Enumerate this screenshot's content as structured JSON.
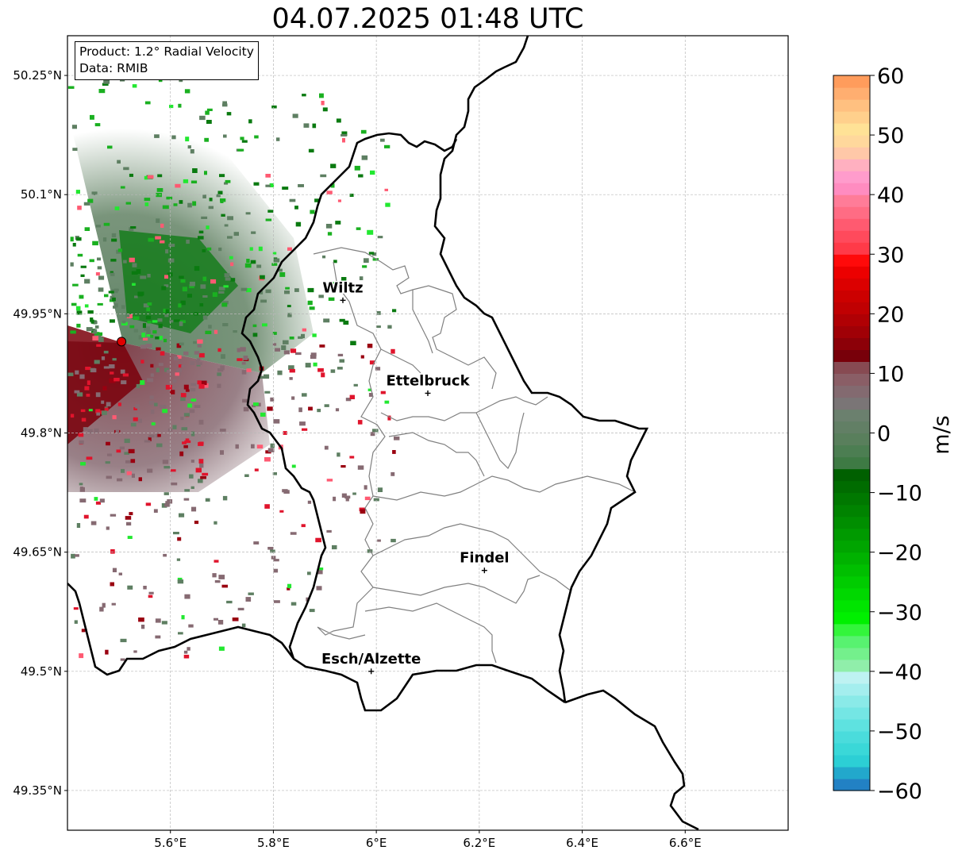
{
  "title": "04.07.2025 01:48 UTC",
  "info_box": {
    "product": "Product: 1.2° Radial Velocity",
    "data": "Data: RMIB"
  },
  "axes": {
    "lat_ticks": [
      {
        "value": 50.25,
        "label": "50.25°N"
      },
      {
        "value": 50.1,
        "label": "50.1°N"
      },
      {
        "value": 49.95,
        "label": "49.95°N"
      },
      {
        "value": 49.8,
        "label": "49.8°N"
      },
      {
        "value": 49.65,
        "label": "49.65°N"
      },
      {
        "value": 49.5,
        "label": "49.5°N"
      },
      {
        "value": 49.35,
        "label": "49.35°N"
      }
    ],
    "lon_ticks": [
      {
        "value": 5.6,
        "label": "5.6°E"
      },
      {
        "value": 5.8,
        "label": "5.8°E"
      },
      {
        "value": 6.0,
        "label": "6°E"
      },
      {
        "value": 6.2,
        "label": "6.2°E"
      },
      {
        "value": 6.4,
        "label": "6.4°E"
      },
      {
        "value": 6.6,
        "label": "6.6°E"
      }
    ],
    "lon_range": [
      5.4,
      6.8
    ],
    "lat_range": [
      49.3,
      50.3
    ],
    "grid": true
  },
  "cities": [
    {
      "name": "Wiltz",
      "lon": 5.935,
      "lat": 49.967
    },
    {
      "name": "Ettelbruck",
      "lon": 6.1,
      "lat": 49.85
    },
    {
      "name": "Findel",
      "lon": 6.21,
      "lat": 49.627
    },
    {
      "name": "Esch/Alzette",
      "lon": 5.99,
      "lat": 49.5
    }
  ],
  "radar_site": {
    "lon": 5.505,
    "lat": 49.915
  },
  "colorbar": {
    "label": "m/s",
    "min": -60,
    "max": 60,
    "ticks": [
      {
        "value": 60,
        "label": "60"
      },
      {
        "value": 50,
        "label": "50"
      },
      {
        "value": 40,
        "label": "40"
      },
      {
        "value": 30,
        "label": "30"
      },
      {
        "value": 20,
        "label": "20"
      },
      {
        "value": 10,
        "label": "10"
      },
      {
        "value": 0,
        "label": "0"
      },
      {
        "value": -10,
        "label": "−10"
      },
      {
        "value": -20,
        "label": "−20"
      },
      {
        "value": -30,
        "label": "−30"
      },
      {
        "value": -40,
        "label": "−40"
      },
      {
        "value": -50,
        "label": "−50"
      },
      {
        "value": -60,
        "label": "−60"
      }
    ],
    "colors": [
      "#2281c4",
      "#22a8cc",
      "#2ccfd5",
      "#3ad8d8",
      "#4adcdc",
      "#5ee2e0",
      "#74e6e4",
      "#8aeae8",
      "#a4eeee",
      "#bef2f2",
      "#90eeaa",
      "#74f08c",
      "#58f270",
      "#33f53b",
      "#00f000",
      "#00e500",
      "#00d800",
      "#00cc00",
      "#00bf00",
      "#00b200",
      "#00a500",
      "#009a00",
      "#008e00",
      "#008300",
      "#007800",
      "#006c00",
      "#006000",
      "#3e7a44",
      "#4c7e52",
      "#597f5c",
      "#627f65",
      "#6b806e",
      "#7a7576",
      "#836a70",
      "#8a5e66",
      "#874a52",
      "#78000a",
      "#8c0008",
      "#a00006",
      "#b00004",
      "#c00002",
      "#cc0000",
      "#dc0000",
      "#ec0000",
      "#ff0a0a",
      "#ff3a48",
      "#ff4a5c",
      "#ff5a70",
      "#ff6c84",
      "#ff7c98",
      "#ff8cc0",
      "#ff9ccc",
      "#ffb0c0",
      "#ffc8a8",
      "#ffd89c",
      "#ffe296",
      "#ffd08c",
      "#ffc080",
      "#ffae70",
      "#ff9c5c"
    ]
  }
}
